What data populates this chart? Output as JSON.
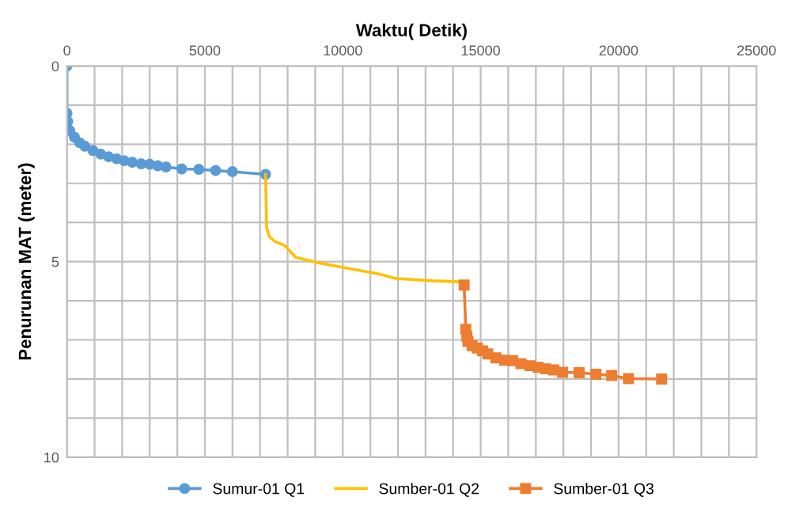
{
  "chart_data": {
    "type": "line",
    "xlabel": "Waktu( Detik)",
    "ylabel": "Penurunan MAT (meter)",
    "xlim": [
      0,
      25000
    ],
    "ylim": [
      10,
      0
    ],
    "xticks": [
      0,
      {
        "value": 1000,
        "label": null
      },
      {
        "value": 2000,
        "label": null
      },
      {
        "value": 3000,
        "label": null
      },
      {
        "value": 4000,
        "label": null
      },
      5000,
      {
        "value": 6000,
        "label": null
      },
      {
        "value": 7000,
        "label": null
      },
      {
        "value": 8000,
        "label": null
      },
      {
        "value": 9000,
        "label": null
      },
      10000,
      {
        "value": 11000,
        "label": null
      },
      {
        "value": 12000,
        "label": null
      },
      {
        "value": 13000,
        "label": null
      },
      {
        "value": 14000,
        "label": null
      },
      15000,
      {
        "value": 16000,
        "label": null
      },
      {
        "value": 17000,
        "label": null
      },
      {
        "value": 18000,
        "label": null
      },
      {
        "value": 19000,
        "label": null
      },
      20000,
      {
        "value": 21000,
        "label": null
      },
      {
        "value": 22000,
        "label": null
      },
      {
        "value": 23000,
        "label": null
      },
      {
        "value": 24000,
        "label": null
      },
      25000
    ],
    "yticks": [
      0,
      {
        "value": 1,
        "label": null
      },
      {
        "value": 2,
        "label": null
      },
      {
        "value": 3,
        "label": null
      },
      {
        "value": 4,
        "label": null
      },
      5,
      {
        "value": 6,
        "label": null
      },
      {
        "value": 7,
        "label": null
      },
      {
        "value": 8,
        "label": null
      },
      {
        "value": 9,
        "label": null
      },
      10
    ],
    "grid": true,
    "legend": "bottom",
    "series": [
      {
        "name": "Sumur-01 Q1",
        "color": "#5b9bd5",
        "marker": "circle",
        "x": [
          0,
          0,
          30,
          100,
          270,
          460,
          650,
          940,
          1220,
          1510,
          1800,
          2080,
          2370,
          2690,
          3000,
          3290,
          3590,
          4160,
          4780,
          5390,
          6000,
          7200
        ],
        "values": [
          0,
          1.21,
          1.42,
          1.65,
          1.82,
          1.96,
          2.05,
          2.16,
          2.25,
          2.32,
          2.37,
          2.42,
          2.46,
          2.5,
          2.51,
          2.55,
          2.58,
          2.63,
          2.64,
          2.67,
          2.7,
          2.77
        ]
      },
      {
        "name": "Sumber-01 Q2",
        "color": "#ffc000",
        "marker": "none",
        "x": [
          7200,
          7240,
          7330,
          7520,
          7900,
          8290,
          9050,
          10010,
          11350,
          11920,
          13250,
          14400
        ],
        "values": [
          2.77,
          4.14,
          4.35,
          4.48,
          4.59,
          4.89,
          5.02,
          5.15,
          5.32,
          5.43,
          5.49,
          5.52
        ]
      },
      {
        "name": "Sumber-01 Q3",
        "color": "#ed7d31",
        "marker": "square",
        "x": [
          14400,
          14460,
          14500,
          14540,
          14690,
          14880,
          15070,
          15260,
          15550,
          15870,
          16160,
          16460,
          16790,
          17080,
          17360,
          17650,
          17970,
          18570,
          19180,
          19750,
          20360,
          21560
        ],
        "values": [
          5.6,
          6.73,
          6.91,
          7.04,
          7.15,
          7.21,
          7.28,
          7.36,
          7.46,
          7.52,
          7.53,
          7.61,
          7.66,
          7.7,
          7.74,
          7.77,
          7.83,
          7.84,
          7.88,
          7.91,
          7.99,
          8.0
        ]
      }
    ]
  }
}
